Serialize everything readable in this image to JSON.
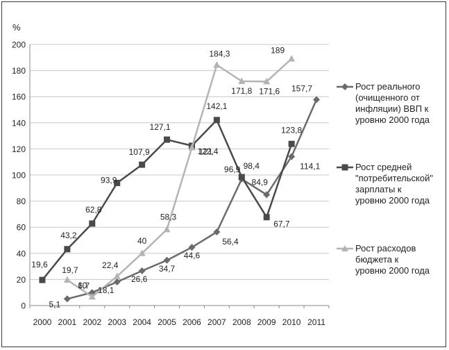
{
  "chart_data": {
    "type": "line",
    "ylabel": "%",
    "ylim": [
      0,
      200
    ],
    "yticks": [
      "0",
      "20",
      "40",
      "60",
      "80",
      "100",
      "120",
      "140",
      "160",
      "180",
      "200"
    ],
    "categories": [
      "2000",
      "2001",
      "2002",
      "2003",
      "2004",
      "2005",
      "2006",
      "2007",
      "2008",
      "2009",
      "2010",
      "2011"
    ],
    "grid": true,
    "legend_position": "right",
    "series": [
      {
        "name": "Рост реального\n(очищенного от\nинфляции) ВВП к\nуровню 2000 года",
        "color": "#6b6b6b",
        "marker": "diamond",
        "values": [
          null,
          5.1,
          10,
          18.1,
          26.6,
          34.7,
          44.6,
          56.4,
          96.9,
          84.9,
          114.1,
          157.7
        ],
        "labels": [
          null,
          "5,1",
          "10",
          "18,1",
          "26,6",
          "34,7",
          "44,6",
          "56,4",
          "96,9",
          "84,9",
          "114,1",
          "157,7"
        ]
      },
      {
        "name": "Рост средней\n\"потребительской\"\nзарплаты к\nуровню 2000 года",
        "color": "#4a4a4a",
        "marker": "square",
        "values": [
          19.6,
          43.2,
          62.8,
          93.9,
          107.9,
          127.1,
          122.4,
          142.1,
          98.4,
          67.7,
          123.8,
          null
        ],
        "labels": [
          "19,6",
          "43,2",
          "62,8",
          "93,9",
          "107,9",
          "127,1",
          "122,4",
          "142,1",
          "98,4",
          "67,7",
          "123,8",
          null
        ]
      },
      {
        "name": "Рост расходов\nбюджета к\nуровню 2000 года",
        "color": "#b4b4b4",
        "marker": "triangle",
        "values": [
          null,
          19.7,
          6.7,
          22.4,
          40,
          58.3,
          121,
          184.3,
          171.8,
          171.6,
          189,
          null
        ],
        "labels": [
          null,
          "19,7",
          "6,7",
          "22,4",
          "40",
          "58,3",
          "121",
          "184,3",
          "171,8",
          "171,6",
          "189",
          null
        ]
      }
    ]
  }
}
